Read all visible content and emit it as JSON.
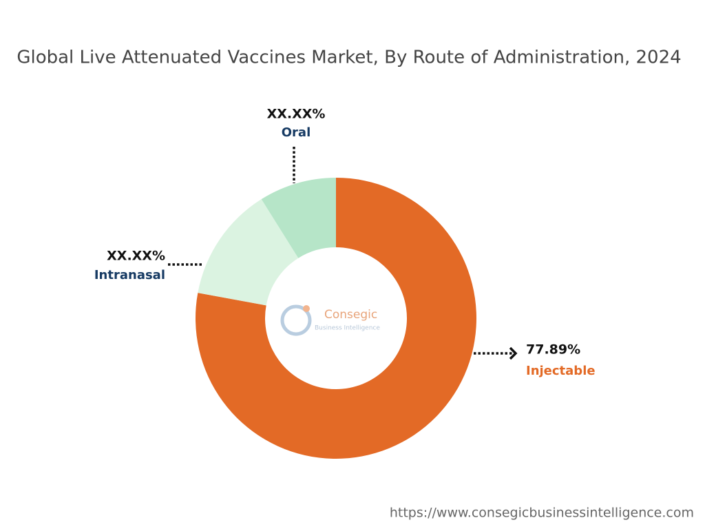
{
  "chart_data": {
    "type": "donut",
    "title": "Global Live Attenuated Vaccines Market, By Route of Administration, 2024",
    "categories": [
      "Injectable",
      "Intranasal",
      "Oral"
    ],
    "values": [
      77.89,
      13.2,
      8.91
    ],
    "value_labels": [
      "77.89%",
      "XX.XX%",
      "XX.XX%"
    ],
    "colors": [
      "#e36a26",
      "#dbf3e1",
      "#b6e5c8"
    ],
    "label_colors": [
      "#e36a26",
      "#163a63",
      "#163a63"
    ]
  },
  "logo": {
    "name": "Consegic",
    "tagline": "Business Intelligence"
  },
  "footer": "https://www.consegicbusinessintelligence.com"
}
